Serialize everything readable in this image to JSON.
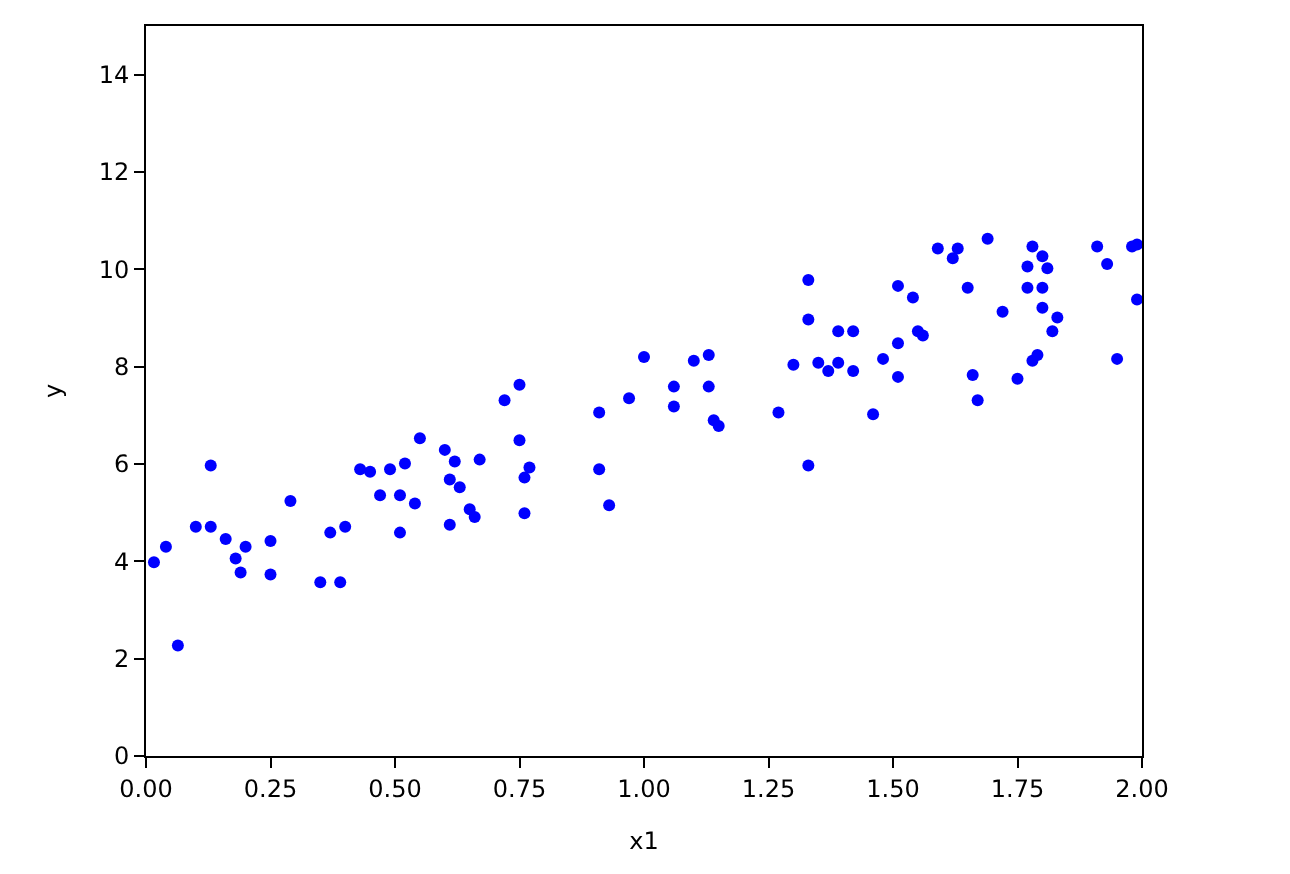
{
  "chart_data": {
    "type": "scatter",
    "xlabel": "x1",
    "ylabel": "y",
    "xlim": [
      0,
      2
    ],
    "xticks": [
      {
        "value": 0,
        "label": "0.00"
      },
      {
        "value": 0.25,
        "label": "0.25"
      },
      {
        "value": 0.5,
        "label": "0.50"
      },
      {
        "value": 0.75,
        "label": "0.75"
      },
      {
        "value": 1,
        "label": "1.00"
      },
      {
        "value": 1.25,
        "label": "1.25"
      },
      {
        "value": 1.5,
        "label": "1.50"
      },
      {
        "value": 1.75,
        "label": "1.75"
      },
      {
        "value": 2,
        "label": "2.00"
      }
    ],
    "ylim": [
      0,
      15
    ],
    "yticks": [
      0,
      2,
      4,
      6,
      8,
      10,
      12,
      14
    ],
    "marker": "circle",
    "series": [
      {
        "color": "#0000ff",
        "x": [
          0.016,
          0.04,
          0.064,
          0.1,
          0.13,
          0.13,
          0.16,
          0.18,
          0.19,
          0.2,
          0.25,
          0.25,
          0.29,
          0.35,
          0.37,
          0.39,
          0.4,
          0.43,
          0.45,
          0.47,
          0.49,
          0.51,
          0.51,
          0.52,
          0.54,
          0.55,
          0.6,
          0.61,
          0.62,
          0.61,
          0.63,
          0.65,
          0.66,
          0.67,
          0.72,
          0.75,
          0.75,
          0.76,
          0.76,
          0.77,
          0.91,
          0.91,
          0.93,
          0.97,
          1.0,
          1.06,
          1.06,
          1.1,
          1.13,
          1.13,
          1.14,
          1.15,
          1.27,
          1.3,
          1.33,
          1.33,
          1.33,
          1.35,
          1.37,
          1.39,
          1.39,
          1.42,
          1.42,
          1.46,
          1.48,
          1.51,
          1.51,
          1.51,
          1.54,
          1.55,
          1.56,
          1.59,
          1.62,
          1.63,
          1.65,
          1.66,
          1.67,
          1.69,
          1.72,
          1.75,
          1.77,
          1.77,
          1.78,
          1.78,
          1.79,
          1.8,
          1.8,
          1.81,
          1.8,
          1.82,
          1.83,
          1.91,
          1.93,
          1.95,
          1.98,
          1.99,
          1.99
        ],
        "values": [
          3.98,
          4.3,
          2.27,
          4.71,
          5.97,
          4.71,
          4.46,
          4.06,
          3.77,
          4.3,
          3.73,
          4.42,
          5.24,
          3.57,
          4.59,
          3.57,
          4.71,
          5.89,
          5.84,
          5.36,
          5.89,
          5.36,
          4.59,
          6.01,
          5.19,
          6.53,
          6.29,
          5.68,
          6.05,
          4.75,
          5.52,
          5.07,
          4.91,
          6.09,
          7.31,
          7.63,
          6.49,
          5.72,
          4.99,
          5.93,
          7.06,
          5.89,
          5.15,
          7.35,
          8.2,
          7.59,
          7.18,
          8.12,
          8.24,
          7.59,
          6.9,
          6.78,
          7.06,
          8.04,
          5.97,
          9.78,
          8.97,
          8.08,
          7.91,
          8.08,
          8.73,
          7.91,
          8.73,
          7.02,
          8.16,
          9.66,
          8.48,
          7.79,
          9.42,
          8.73,
          8.64,
          10.43,
          10.23,
          10.43,
          9.62,
          7.83,
          7.31,
          10.63,
          9.13,
          7.75,
          10.06,
          9.62,
          10.47,
          8.12,
          8.24,
          9.21,
          10.27,
          10.02,
          9.62,
          8.73,
          9.01,
          10.47,
          10.11,
          8.16,
          10.47,
          10.51,
          9.38
        ]
      }
    ]
  }
}
